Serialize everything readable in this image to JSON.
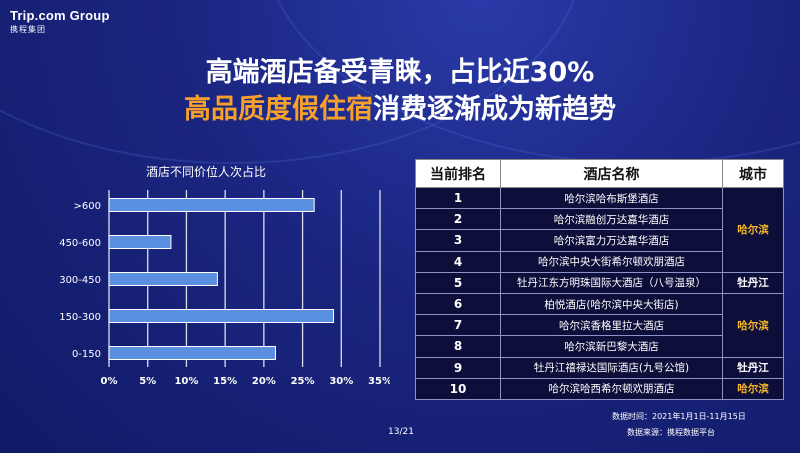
{
  "logo": {
    "brand": "Trip.com Group",
    "sub": "携程集团"
  },
  "title_line1": "高端酒店备受青睐，占比近30%",
  "title_line2_highlight": "高品质度假住宿",
  "title_line2_rest": "消费逐渐成为新趋势",
  "chart_title": "酒店不同价位人次占比",
  "chart_data": {
    "type": "bar",
    "orientation": "horizontal",
    "categories": [
      ">600",
      "450-600",
      "300-450",
      "150-300",
      "0-150"
    ],
    "values": [
      26.5,
      8,
      14,
      29,
      21.5
    ],
    "xlim": [
      0,
      35
    ],
    "xticks": [
      "0%",
      "5%",
      "10%",
      "15%",
      "20%",
      "25%",
      "30%",
      "35%"
    ],
    "grid": true,
    "bar_color": "#5b8fe0"
  },
  "table": {
    "headers": [
      "当前排名",
      "酒店名称",
      "城市"
    ],
    "rows": [
      {
        "rank": "1",
        "hotel": "哈尔滨哈布斯堡酒店"
      },
      {
        "rank": "2",
        "hotel": "哈尔滨融创万达嘉华酒店"
      },
      {
        "rank": "3",
        "hotel": "哈尔滨富力万达嘉华酒店"
      },
      {
        "rank": "4",
        "hotel": "哈尔滨中央大街希尔顿欢朋酒店"
      },
      {
        "rank": "5",
        "hotel": "牡丹江东方明珠国际大酒店（八号温泉）"
      },
      {
        "rank": "6",
        "hotel": "柏悦酒店(哈尔滨中央大街店)"
      },
      {
        "rank": "7",
        "hotel": "哈尔滨香格里拉大酒店"
      },
      {
        "rank": "8",
        "hotel": "哈尔滨新巴黎大酒店"
      },
      {
        "rank": "9",
        "hotel": "牡丹江禧禄达国际酒店(九号公馆)"
      },
      {
        "rank": "10",
        "hotel": "哈尔滨哈西希尔顿欢朋酒店"
      }
    ],
    "cities": [
      {
        "label": "哈尔滨",
        "color": "#f7b52a"
      },
      {
        "label": "牡丹江",
        "color": "#ffffff"
      },
      {
        "label": "哈尔滨",
        "color": "#f7b52a"
      },
      {
        "label": "牡丹江",
        "color": "#ffffff"
      },
      {
        "label": "哈尔滨",
        "color": "#f7b52a"
      }
    ]
  },
  "footer": {
    "date": "数据时间：2021年1月1日-11月15日",
    "source": "数据来源：携程数据平台"
  },
  "page_number": "13/21"
}
